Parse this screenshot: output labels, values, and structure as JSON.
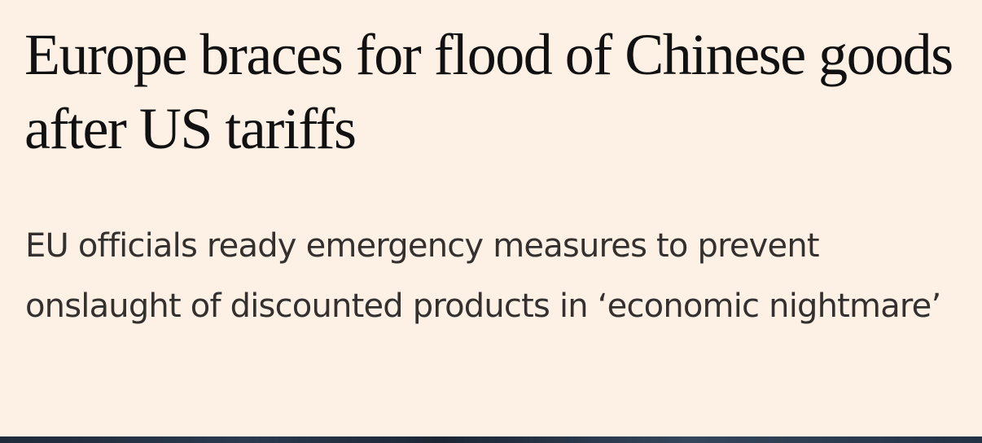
{
  "article": {
    "headline": "Europe braces for flood of Chinese goods after US tariffs",
    "standfirst": "EU officials ready emergency measures to prevent onslaught of discounted products in ‘economic nightmare’"
  },
  "colors": {
    "background": "#fdf1e6",
    "headline_text": "#111111",
    "standfirst_text": "#33302e",
    "image_strip": "#243245"
  }
}
